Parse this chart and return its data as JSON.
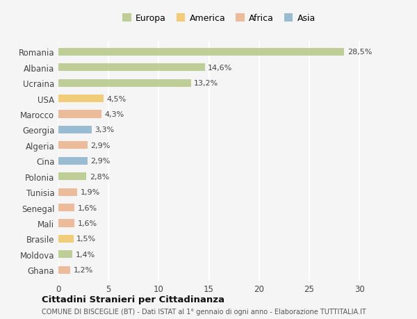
{
  "countries": [
    "Romania",
    "Albania",
    "Ucraina",
    "USA",
    "Marocco",
    "Georgia",
    "Algeria",
    "Cina",
    "Polonia",
    "Tunisia",
    "Senegal",
    "Mali",
    "Brasile",
    "Moldova",
    "Ghana"
  ],
  "values": [
    28.5,
    14.6,
    13.2,
    4.5,
    4.3,
    3.3,
    2.9,
    2.9,
    2.8,
    1.9,
    1.6,
    1.6,
    1.5,
    1.4,
    1.2
  ],
  "categories": [
    "Europa",
    "Europa",
    "Europa",
    "America",
    "Africa",
    "Asia",
    "Africa",
    "Asia",
    "Europa",
    "Africa",
    "Africa",
    "Africa",
    "America",
    "Europa",
    "Africa"
  ],
  "colors": {
    "Europa": "#adc178",
    "America": "#f0c050",
    "Africa": "#e8a87c",
    "Asia": "#7aaac8"
  },
  "xlim": [
    0,
    32
  ],
  "xticks": [
    0,
    5,
    10,
    15,
    20,
    25,
    30
  ],
  "title": "Cittadini Stranieri per Cittadinanza",
  "subtitle": "COMUNE DI BISCEGLIE (BT) - Dati ISTAT al 1° gennaio di ogni anno - Elaborazione TUTTITALIA.IT",
  "background_color": "#f5f5f5",
  "grid_color": "#ffffff",
  "bar_alpha": 0.75,
  "bar_height": 0.5
}
